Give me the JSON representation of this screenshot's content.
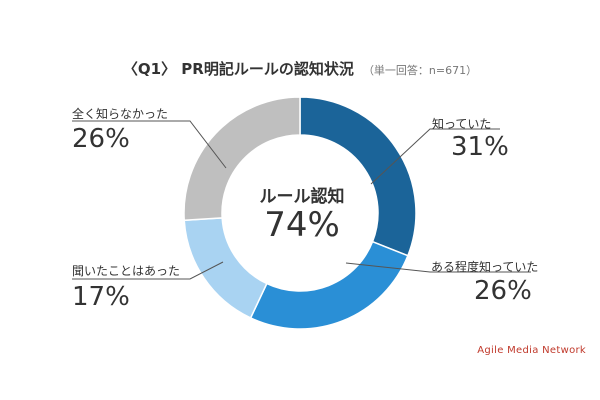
{
  "chart_data": {
    "type": "pie",
    "title": "〈Q1〉 PR明記ルールの認知状況",
    "note": "（単一回答：n=671）",
    "center_label": "ルール認知",
    "center_value": "74%",
    "categories": [
      "知っていた",
      "ある程度知っていた",
      "聞いたことはあった",
      "全く知らなかった"
    ],
    "values": [
      31,
      26,
      17,
      26
    ],
    "value_labels": [
      "31%",
      "26%",
      "17%",
      "26%"
    ],
    "colors": [
      "#1b6499",
      "#2a8fd6",
      "#a9d3f2",
      "#bfbfbf"
    ]
  },
  "credit": "Agile Media Network"
}
